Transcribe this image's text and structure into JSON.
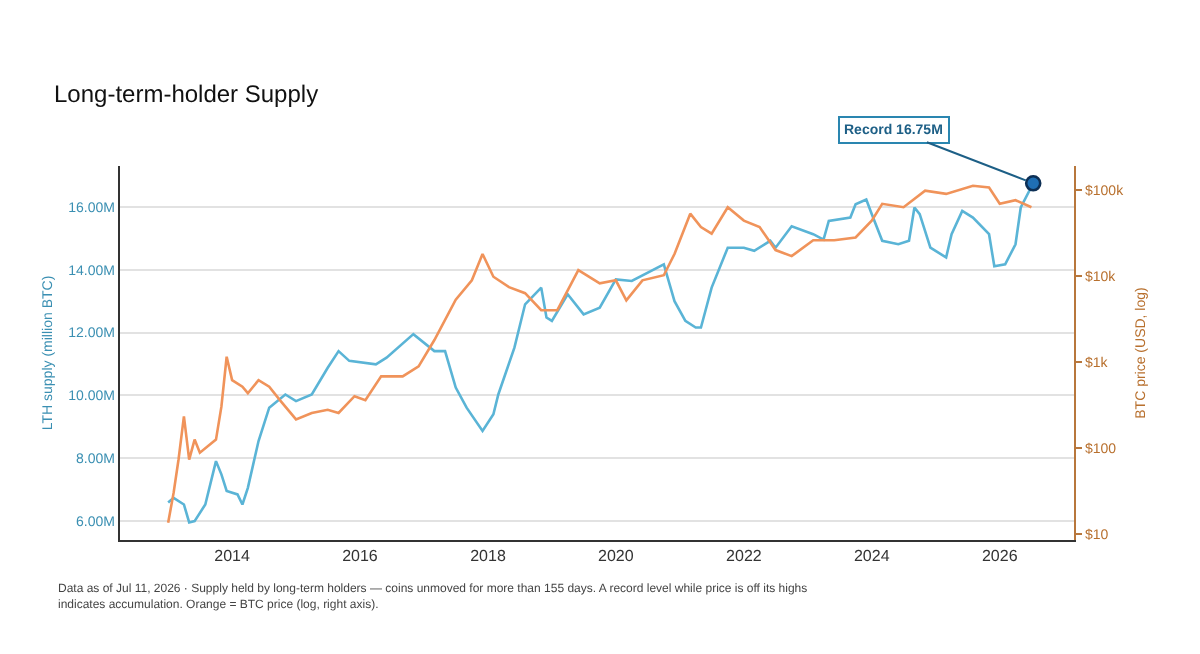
{
  "chart_data": {
    "type": "line",
    "title": "Long-term-holder Supply",
    "ylabel": "LTH supply (million BTC)",
    "y2label": "BTC price (USD, log)",
    "annotations": [
      {
        "text": "Record 16.75M",
        "x": "2026-07-11",
        "y": 16.75
      },
      "Data as of Jul 11, 2026 · Supply held by long-term holders — coins unmoved for more than 155 days. A record level while price is off its highs indicates accumulation. Orange = BTC price (log, right axis)."
    ],
    "xlim": [
      "2012-04",
      "2027-03"
    ],
    "xticks": [
      {
        "value": "2014-01-01",
        "label": "2014"
      },
      {
        "value": "2016-01-01",
        "label": "2016"
      },
      {
        "value": "2018-01-01",
        "label": "2018"
      },
      {
        "value": "2020-01-01",
        "label": "2020"
      },
      {
        "value": "2022-01-01",
        "label": "2022"
      },
      {
        "value": "2024-01-01",
        "label": "2024"
      },
      {
        "value": "2026-01-01",
        "label": "2026"
      }
    ],
    "ylim": [
      5.4,
      17.3
    ],
    "yticks": [
      {
        "value": 6,
        "label": "6.00M"
      },
      {
        "value": 8,
        "label": "8.00M"
      },
      {
        "value": 10,
        "label": "10.00M"
      },
      {
        "value": 12,
        "label": "12.00M"
      },
      {
        "value": 14,
        "label": "14.00M"
      },
      {
        "value": 16,
        "label": "16.00M"
      }
    ],
    "y2lim": [
      8.5,
      190000
    ],
    "y2ticks": [
      {
        "value": 10,
        "label": "$10"
      },
      {
        "value": 100,
        "label": "$100"
      },
      {
        "value": 1000,
        "label": "$1k"
      },
      {
        "value": 10000,
        "label": "$10k"
      },
      {
        "value": 100000,
        "label": "$100k"
      }
    ],
    "log": "y2",
    "grid": "y",
    "line_style": "solid",
    "marker": "none",
    "series": [
      {
        "color": "#5ab4d6",
        "x": [
          "2013-01",
          "2013-02",
          "2013-04",
          "2013-05",
          "2013-06",
          "2013-08",
          "2013-10",
          "2013-11",
          "2013-12",
          "2014-02",
          "2014-03",
          "2014-04",
          "2014-06",
          "2014-08",
          "2014-11",
          "2015-01",
          "2015-04",
          "2015-07",
          "2015-09",
          "2015-11",
          "2016-04",
          "2016-06",
          "2016-11",
          "2017-03",
          "2017-05",
          "2017-07",
          "2017-09",
          "2017-12",
          "2018-02",
          "2018-03",
          "2018-06",
          "2018-08",
          "2018-11",
          "2018-12",
          "2019-01",
          "2019-04",
          "2019-07",
          "2019-10",
          "2020-01",
          "2020-04",
          "2020-10",
          "2020-12",
          "2021-02",
          "2021-04",
          "2021-05",
          "2021-07",
          "2021-10",
          "2022-01",
          "2022-03",
          "2022-06",
          "2022-07",
          "2022-10",
          "2023-02",
          "2023-04",
          "2023-05",
          "2023-09",
          "2023-10",
          "2023-12",
          "2024-01",
          "2024-03",
          "2024-06",
          "2024-08",
          "2024-09",
          "2024-10",
          "2024-12",
          "2025-03",
          "2025-04",
          "2025-06",
          "2025-08",
          "2025-11",
          "2025-12",
          "2026-02",
          "2026-04",
          "2026-05",
          "2026-07-11"
        ],
        "values": [
          6.59,
          6.74,
          6.53,
          5.96,
          6.0,
          6.53,
          7.91,
          7.49,
          6.96,
          6.85,
          6.53,
          7.06,
          8.55,
          9.61,
          10.03,
          9.82,
          10.03,
          10.88,
          11.41,
          11.1,
          10.99,
          11.2,
          11.95,
          11.41,
          11.41,
          10.25,
          9.61,
          8.87,
          9.4,
          10.03,
          11.52,
          12.9,
          13.43,
          12.48,
          12.37,
          13.22,
          12.58,
          12.79,
          13.69,
          13.64,
          14.17,
          13.0,
          12.37,
          12.16,
          12.16,
          13.43,
          14.7,
          14.7,
          14.6,
          14.92,
          14.7,
          15.38,
          15.13,
          14.96,
          15.55,
          15.66,
          16.08,
          16.23,
          15.77,
          14.92,
          14.81,
          14.92,
          15.98,
          15.77,
          14.7,
          14.39,
          15.13,
          15.87,
          15.66,
          15.13,
          14.11,
          14.17,
          14.81,
          15.98,
          16.75
        ]
      },
      {
        "color": "#f0935a",
        "axis": "y2",
        "x": [
          "2013-01",
          "2013-02",
          "2013-03",
          "2013-04",
          "2013-05",
          "2013-06",
          "2013-07",
          "2013-10",
          "2013-11",
          "2013-12",
          "2014-01",
          "2014-03",
          "2014-04",
          "2014-06",
          "2014-08",
          "2014-10",
          "2015-01",
          "2015-04",
          "2015-07",
          "2015-09",
          "2015-12",
          "2016-02",
          "2016-05",
          "2016-09",
          "2016-12",
          "2017-03",
          "2017-07",
          "2017-10",
          "2017-12",
          "2018-02",
          "2018-05",
          "2018-08",
          "2018-11",
          "2019-02",
          "2019-06",
          "2019-10",
          "2020-01",
          "2020-03",
          "2020-06",
          "2020-10",
          "2020-12",
          "2021-03",
          "2021-05",
          "2021-07",
          "2021-10",
          "2022-01",
          "2022-04",
          "2022-07",
          "2022-10",
          "2023-02",
          "2023-06",
          "2023-10",
          "2024-01",
          "2024-03",
          "2024-07",
          "2024-11",
          "2025-03",
          "2025-08",
          "2025-11",
          "2026-01",
          "2026-04",
          "2026-07"
        ],
        "values": [
          13.5,
          30,
          73,
          233,
          73,
          125,
          88,
          125,
          302,
          1150,
          615,
          515,
          433,
          615,
          515,
          360,
          215,
          255,
          278,
          255,
          400,
          360,
          680,
          680,
          890,
          1800,
          5300,
          8900,
          18000,
          9800,
          7400,
          6300,
          4000,
          4000,
          11700,
          8200,
          8900,
          5200,
          8900,
          10200,
          18000,
          53000,
          37000,
          31000,
          63000,
          44000,
          37000,
          20000,
          17000,
          26000,
          26000,
          28000,
          44000,
          69000,
          63000,
          98000,
          90000,
          112000,
          107000,
          69000,
          76000,
          63000
        ]
      }
    ]
  }
}
